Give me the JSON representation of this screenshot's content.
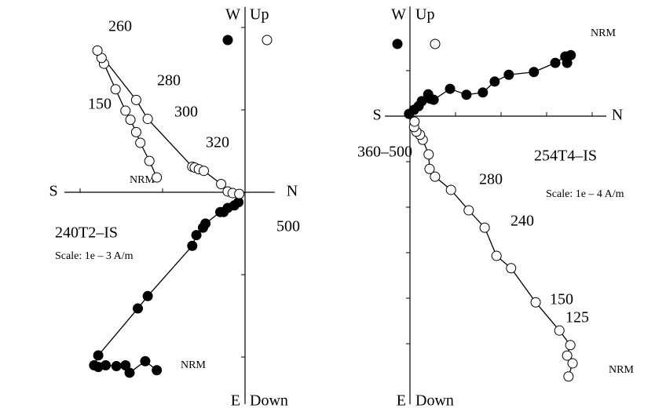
{
  "chart_data": [
    {
      "type": "zijderveld",
      "axis_labels": {
        "top_left": "W",
        "top_right": "Up",
        "left": "S",
        "right": "N",
        "bottom_left": "E",
        "bottom_right": "Down"
      },
      "sample": "240T2–IS",
      "scale": "Scale: 1e – 3 A/m",
      "annotations": [
        "260",
        "280",
        "150",
        "300",
        "320",
        "NRM",
        "500",
        "NRM"
      ],
      "xlim": [
        -2.19,
        0.36
      ],
      "ylim": [
        -2.57,
        2.25
      ],
      "xticks": [
        -2,
        -1
      ],
      "yticks": [
        -2,
        -1,
        1,
        2
      ],
      "series": [
        {
          "color": "#000000",
          "x": [
            -1.07,
            -1.21,
            -1.4,
            -1.45,
            -1.56,
            -1.69,
            -1.78,
            -1.83,
            -1.78,
            -1.3,
            -1.18,
            -0.64,
            -0.59,
            -0.51,
            -0.48,
            -0.3,
            -0.26,
            -0.21,
            -0.13,
            -0.08
          ],
          "values": [
            -2.16,
            -2.05,
            -2.19,
            -2.1,
            -2.11,
            -2.1,
            -2.12,
            -2.1,
            -1.98,
            -1.41,
            -1.26,
            -0.65,
            -0.52,
            -0.43,
            -0.38,
            -0.24,
            -0.24,
            -0.19,
            -0.16,
            -0.12
          ]
        },
        {
          "color": "#ffffff",
          "x": [
            -1.07,
            -1.16,
            -1.27,
            -1.32,
            -1.39,
            -1.45,
            -1.57,
            -1.71,
            -1.74,
            -1.79,
            -1.32,
            -1.18,
            -0.64,
            -0.61,
            -0.56,
            -0.5,
            -0.29,
            -0.21,
            -0.15,
            -0.07
          ],
          "values": [
            0.18,
            0.38,
            0.6,
            0.73,
            0.88,
            0.99,
            1.25,
            1.56,
            1.63,
            1.72,
            1.12,
            0.89,
            0.31,
            0.3,
            0.28,
            0.26,
            0.1,
            0.01,
            -0.01,
            -0.02
          ]
        }
      ]
    },
    {
      "type": "zijderveld",
      "axis_labels": {
        "top_left": "W",
        "top_right": "Up",
        "left": "S",
        "right": "N",
        "bottom_left": "E",
        "bottom_right": "Down"
      },
      "sample": "254T4–IS",
      "scale": "Scale: 1e – 4 A/m",
      "annotations": [
        "NRM",
        "360–500",
        "280",
        "240",
        "150",
        "125",
        "NRM"
      ],
      "xlim": [
        -0.55,
        4.31
      ],
      "ylim": [
        -6.33,
        2.41
      ],
      "xticks": [
        1,
        2,
        3,
        4
      ],
      "yticks": [
        1,
        -1,
        -2,
        -3,
        -4,
        -5
      ],
      "series": [
        {
          "color": "#000000",
          "x": [
            3.53,
            3.45,
            3.41,
            3.19,
            2.72,
            2.17,
            1.86,
            1.6,
            1.24,
            0.88,
            0.52,
            0.4,
            0.45,
            0.26,
            0.19,
            0.09,
            -0.02
          ],
          "values": [
            1.34,
            1.17,
            1.31,
            1.17,
            0.97,
            0.91,
            0.76,
            0.52,
            0.47,
            0.6,
            0.36,
            0.48,
            0.38,
            0.33,
            0.22,
            0.14,
            0.05
          ]
        },
        {
          "color": "#ffffff",
          "x": [
            3.48,
            3.57,
            3.45,
            3.52,
            3.28,
            2.76,
            2.22,
            1.9,
            1.64,
            1.29,
            0.9,
            0.55,
            0.43,
            0.41,
            0.28,
            0.22,
            0.14,
            0.09,
            0.1
          ],
          "values": [
            -5.72,
            -5.43,
            -5.26,
            -5.03,
            -4.71,
            -4.09,
            -3.34,
            -3.07,
            -2.45,
            -2.07,
            -1.62,
            -1.33,
            -1.16,
            -0.84,
            -0.52,
            -0.41,
            -0.34,
            -0.24,
            -0.12
          ]
        }
      ]
    }
  ]
}
